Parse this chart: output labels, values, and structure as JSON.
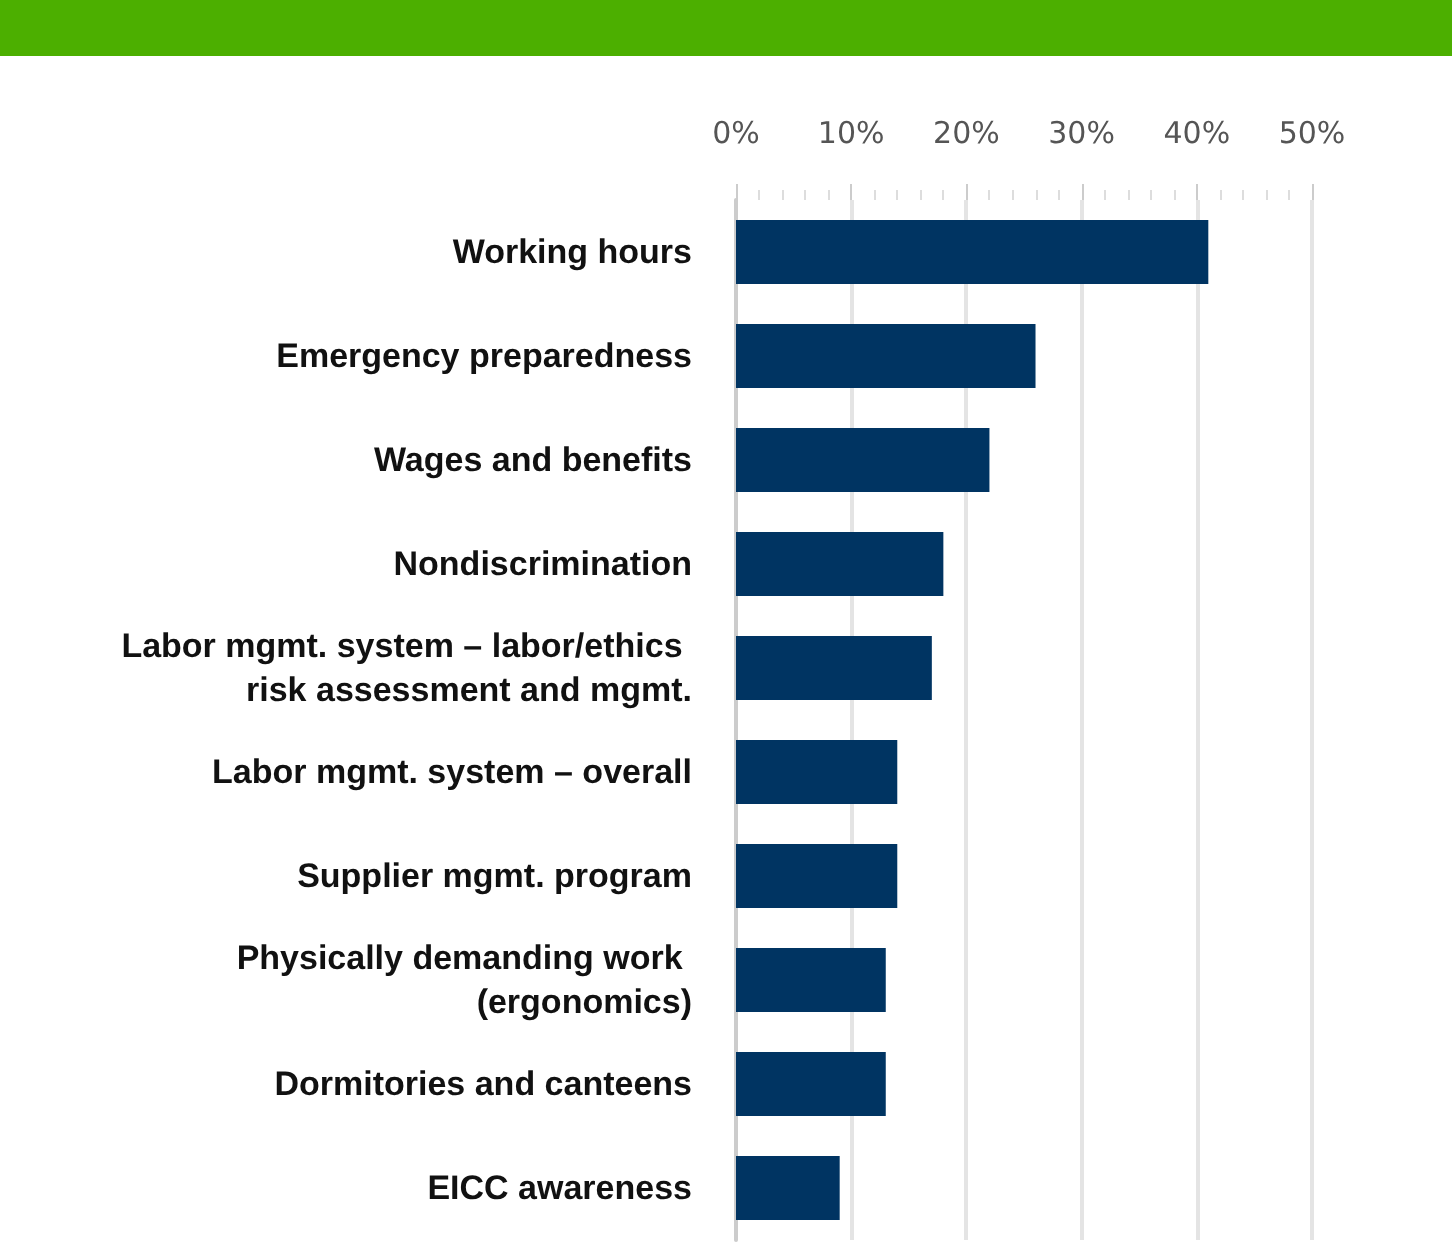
{
  "chart_data": {
    "type": "bar",
    "orientation": "horizontal",
    "categories": [
      "Working hours",
      "Emergency preparedness",
      "Wages and benefits",
      "Nondiscrimination",
      "Labor mgmt. system – labor/ethics risk assessment and mgmt.",
      "Labor mgmt. system – overall",
      "Supplier mgmt. program",
      "Physically demanding work (ergonomics)",
      "Dormitories and canteens",
      "EICC awareness"
    ],
    "values": [
      41,
      26,
      22,
      18,
      17,
      14,
      14,
      13,
      13,
      9
    ],
    "color": "#003462",
    "xlim": [
      0,
      50
    ],
    "xticks": [
      {
        "value": 0,
        "label": "0%"
      },
      {
        "value": 10,
        "label": "10%"
      },
      {
        "value": 20,
        "label": "20%"
      },
      {
        "value": 30,
        "label": "30%"
      },
      {
        "value": 40,
        "label": "40%"
      },
      {
        "value": 50,
        "label": "50%"
      }
    ],
    "grid": "x"
  }
}
